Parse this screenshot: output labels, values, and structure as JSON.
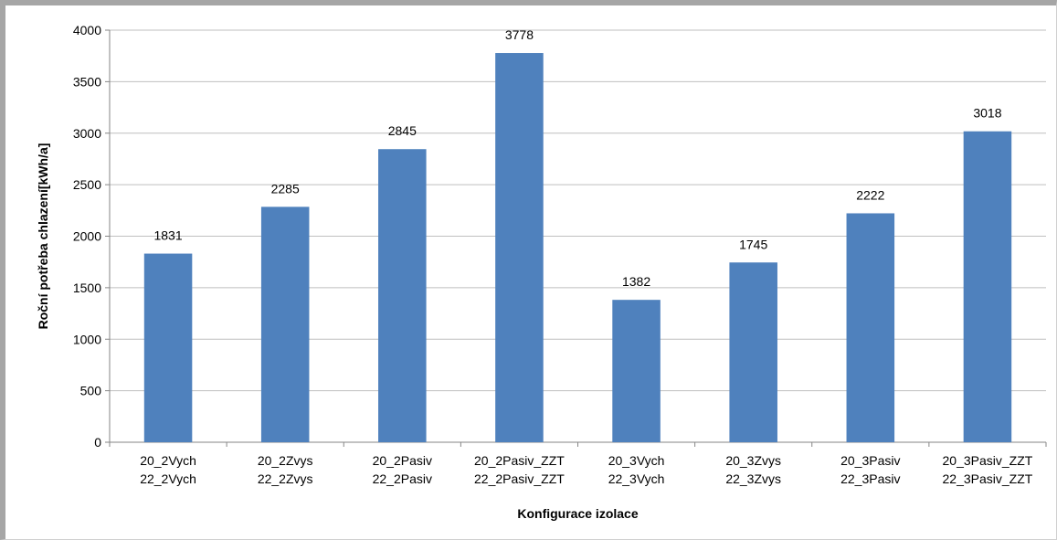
{
  "chart_data": {
    "type": "bar",
    "categories": [
      [
        "20_2Vych",
        "22_2Vych"
      ],
      [
        "20_2Zvys",
        "22_2Zvys"
      ],
      [
        "20_2Pasiv",
        "22_2Pasiv"
      ],
      [
        "20_2Pasiv_ZZT",
        "22_2Pasiv_ZZT"
      ],
      [
        "20_3Vych",
        "22_3Vych"
      ],
      [
        "20_3Zvys",
        "22_3Zvys"
      ],
      [
        "20_3Pasiv",
        "22_3Pasiv"
      ],
      [
        "20_3Pasiv_ZZT",
        "22_3Pasiv_ZZT"
      ]
    ],
    "values": [
      1831,
      2285,
      2845,
      3778,
      1382,
      1745,
      2222,
      3018
    ],
    "data_labels": [
      "1831",
      "2285",
      "2845",
      "3778",
      "1382",
      "1745",
      "2222",
      "3018"
    ],
    "yticks": [
      "0",
      "500",
      "1000",
      "1500",
      "2000",
      "2500",
      "3000",
      "3500",
      "4000"
    ],
    "xlabel": "Konfigurace izolace",
    "ylabel": "Roční potřeba chlazení[kWh/a]",
    "ylim": [
      0,
      4000
    ],
    "grid": true,
    "bar_color": "#4f81bd",
    "grid_color": "#bfbfbf"
  }
}
